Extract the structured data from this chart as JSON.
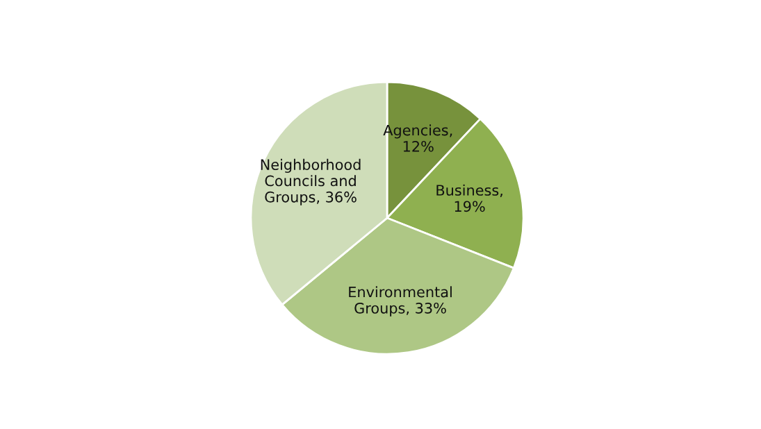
{
  "chart_data": {
    "type": "pie",
    "categories": [
      "Agencies, 12%",
      "Business, 19%",
      "Environmental Groups, 33%",
      "Neighborhood Councils and Groups, 36%"
    ],
    "values": [
      12,
      19,
      33,
      36
    ],
    "colors": [
      "#77923c",
      "#8fb050",
      "#aec785",
      "#cfddb9"
    ],
    "legend": false
  }
}
